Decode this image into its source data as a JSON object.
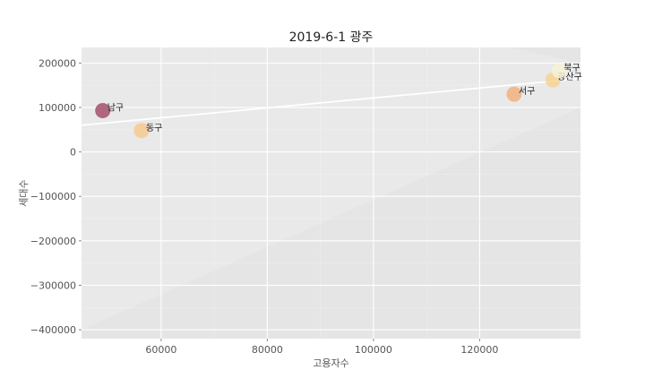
{
  "chart_data": {
    "type": "scatter",
    "title": "2019-6-1 광주",
    "xlabel": "고용자수",
    "ylabel": "세대수",
    "xlim": [
      45000,
      139000
    ],
    "ylim": [
      -420000,
      235000
    ],
    "x_ticks": [
      60000,
      80000,
      100000,
      120000
    ],
    "x_tick_labels": [
      "60000",
      "80000",
      "100000",
      "120000"
    ],
    "y_ticks": [
      200000,
      100000,
      0,
      -100000,
      -200000,
      -300000,
      -400000
    ],
    "y_tick_labels": [
      "200000",
      "100000",
      "0",
      "−100000",
      "−200000",
      "−300000",
      "−400000"
    ],
    "grid": true,
    "points": [
      {
        "label": "남구",
        "x": 49000,
        "y": 93000,
        "color": "#a4506a"
      },
      {
        "label": "동구",
        "x": 56300,
        "y": 48000,
        "color": "#f6c98f"
      },
      {
        "label": "서구",
        "x": 126500,
        "y": 130000,
        "color": "#f2b27e"
      },
      {
        "label": "광산구",
        "x": 133800,
        "y": 162000,
        "color": "#f6d493"
      },
      {
        "label": "북구",
        "x": 135000,
        "y": 183000,
        "color": "#f7f2d6"
      }
    ],
    "regression": {
      "x": [
        45000,
        139000
      ],
      "y": [
        60000,
        165000
      ]
    },
    "confidence_band": {
      "x": [
        45000,
        139000
      ],
      "upper": [
        450000,
        200000
      ],
      "lower": [
        -400000,
        100000
      ]
    }
  }
}
